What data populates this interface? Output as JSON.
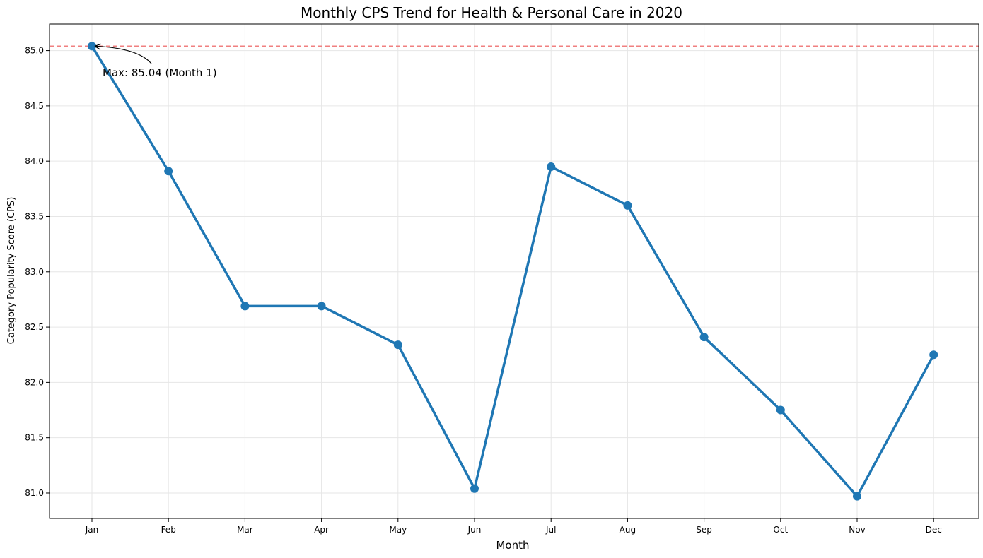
{
  "chart_data": {
    "type": "line",
    "title": "Monthly CPS Trend for Health & Personal Care in 2020",
    "xlabel": "Month",
    "ylabel": "Category Popularity Score (CPS)",
    "categories": [
      "Jan",
      "Feb",
      "Mar",
      "Apr",
      "May",
      "Jun",
      "Jul",
      "Aug",
      "Sep",
      "Oct",
      "Nov",
      "Dec"
    ],
    "series": [
      {
        "values": [
          85.04,
          83.91,
          82.69,
          82.69,
          82.34,
          81.04,
          83.95,
          83.6,
          82.41,
          81.75,
          80.97,
          82.25
        ],
        "color": "#1f77b4"
      }
    ],
    "ylim": [
      80.77,
      85.24
    ],
    "yticks": [
      81.0,
      81.5,
      82.0,
      82.5,
      83.0,
      83.5,
      84.0,
      84.5,
      85.0
    ],
    "ytick_labels": [
      "81.0",
      "81.5",
      "82.0",
      "82.5",
      "83.0",
      "83.5",
      "84.0",
      "84.5",
      "85.0"
    ],
    "grid": true,
    "reference_line": {
      "value": 85.04,
      "color": "#f08080",
      "style": "dashed"
    },
    "annotation": {
      "text": "Max: 85.04 (Month 1)",
      "point_index": 0
    }
  }
}
